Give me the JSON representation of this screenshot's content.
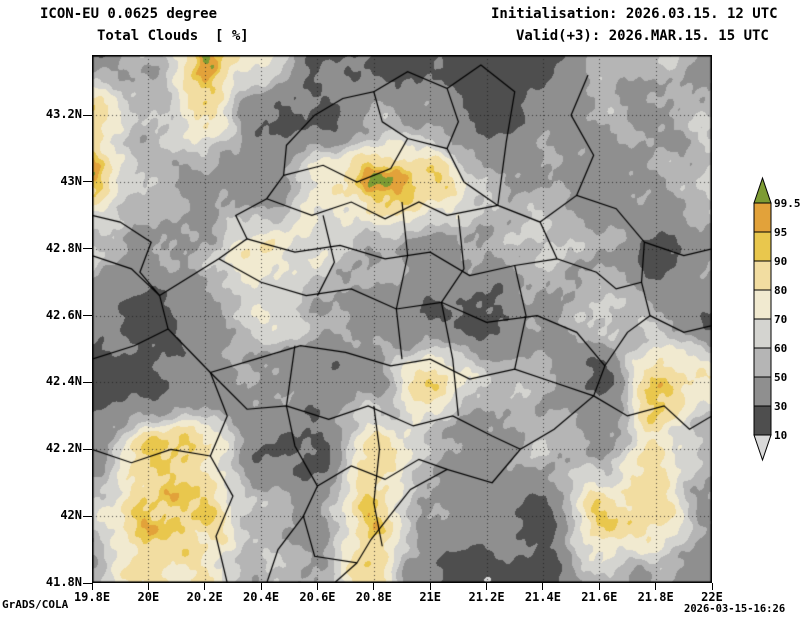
{
  "header": {
    "model_line": "ICON-EU 0.0625 degree",
    "param_line": "Total Clouds  [ %]",
    "init_line": "Initialisation: 2026.03.15. 12 UTC",
    "valid_line": "Valid(+3): 2026.MAR.15. 15 UTC"
  },
  "footer": {
    "credit": "GrADS/COLA",
    "timestamp": "2026-03-15-16:26"
  },
  "chart_data": {
    "type": "heatmap",
    "title": "Total Clouds [%]",
    "model": "ICON-EU",
    "units": "%",
    "lon_range": [
      19.8,
      22.0
    ],
    "lat_range": [
      41.8,
      43.38
    ],
    "x_ticks": [
      {
        "label": "19.8E",
        "lon": 19.8
      },
      {
        "label": "20E",
        "lon": 20.0
      },
      {
        "label": "20.2E",
        "lon": 20.2
      },
      {
        "label": "20.4E",
        "lon": 20.4
      },
      {
        "label": "20.6E",
        "lon": 20.6
      },
      {
        "label": "20.8E",
        "lon": 20.8
      },
      {
        "label": "21E",
        "lon": 21.0
      },
      {
        "label": "21.2E",
        "lon": 21.2
      },
      {
        "label": "21.4E",
        "lon": 21.4
      },
      {
        "label": "21.6E",
        "lon": 21.6
      },
      {
        "label": "21.8E",
        "lon": 21.8
      },
      {
        "label": "22E",
        "lon": 22.0
      }
    ],
    "y_ticks": [
      {
        "label": "43.2N",
        "lat": 43.2
      },
      {
        "label": "43N",
        "lat": 43.0
      },
      {
        "label": "42.8N",
        "lat": 42.8
      },
      {
        "label": "42.6N",
        "lat": 42.6
      },
      {
        "label": "42.4N",
        "lat": 42.4
      },
      {
        "label": "42.2N",
        "lat": 42.2
      },
      {
        "label": "42N",
        "lat": 42.0
      },
      {
        "label": "41.8N",
        "lat": 41.8
      }
    ],
    "levels": [
      10,
      30,
      50,
      60,
      70,
      80,
      90,
      95,
      99.5
    ],
    "level_labels": [
      "99.5",
      "95",
      "90",
      "80",
      "70",
      "60",
      "50",
      "30",
      "10"
    ],
    "colors": {
      "below": "#d9d9d9",
      "bands": [
        "#4e4e4e",
        "#8f8f8f",
        "#b5b5b5",
        "#d4d4d0",
        "#f1ead0",
        "#f2dda1",
        "#e9c74d",
        "#e2a23a"
      ],
      "above": "#7d9b33"
    },
    "grid": {
      "lon_start": 19.8,
      "lon_step": 0.2,
      "lat_start": 43.4,
      "lat_step": -0.2,
      "values": [
        [
          25,
          55,
          100,
          80,
          30,
          20,
          22,
          20,
          25,
          50,
          55,
          45
        ],
        [
          88,
          50,
          80,
          35,
          25,
          50,
          45,
          20,
          40,
          55,
          50,
          55
        ],
        [
          90,
          55,
          40,
          35,
          75,
          100,
          92,
          55,
          50,
          40,
          55,
          60
        ],
        [
          60,
          45,
          55,
          80,
          70,
          55,
          45,
          50,
          62,
          55,
          25,
          45
        ],
        [
          40,
          20,
          45,
          70,
          55,
          40,
          30,
          25,
          45,
          60,
          50,
          30
        ],
        [
          20,
          25,
          40,
          50,
          35,
          45,
          85,
          60,
          50,
          25,
          90,
          75
        ],
        [
          45,
          92,
          85,
          30,
          25,
          88,
          55,
          35,
          55,
          50,
          80,
          55
        ],
        [
          60,
          95,
          90,
          55,
          45,
          93,
          50,
          40,
          25,
          88,
          85,
          50
        ],
        [
          50,
          88,
          80,
          55,
          50,
          85,
          30,
          20,
          25,
          55,
          45,
          40
        ]
      ]
    },
    "borders": [
      [
        [
          20.59,
          43.2
        ],
        [
          20.69,
          43.25
        ],
        [
          20.8,
          43.27
        ],
        [
          20.83,
          43.18
        ],
        [
          20.92,
          43.13
        ],
        [
          21.06,
          43.1
        ],
        [
          21.12,
          43.0
        ],
        [
          21.24,
          42.93
        ],
        [
          21.39,
          42.88
        ],
        [
          21.45,
          42.77
        ],
        [
          21.59,
          42.73
        ],
        [
          21.66,
          42.68
        ],
        [
          21.75,
          42.7
        ],
        [
          21.78,
          42.6
        ],
        [
          21.7,
          42.55
        ],
        [
          21.62,
          42.45
        ],
        [
          21.58,
          42.36
        ],
        [
          21.44,
          42.26
        ],
        [
          21.32,
          42.2
        ],
        [
          21.22,
          42.1
        ],
        [
          21.06,
          42.14
        ],
        [
          20.93,
          42.08
        ],
        [
          20.79,
          41.93
        ],
        [
          20.74,
          41.86
        ],
        [
          20.59,
          41.88
        ],
        [
          20.55,
          42.0
        ],
        [
          20.6,
          42.09
        ],
        [
          20.52,
          42.21
        ],
        [
          20.49,
          42.33
        ],
        [
          20.35,
          42.32
        ],
        [
          20.22,
          42.43
        ],
        [
          20.07,
          42.56
        ],
        [
          20.04,
          42.66
        ],
        [
          20.25,
          42.77
        ],
        [
          20.35,
          42.83
        ],
        [
          20.31,
          42.9
        ],
        [
          20.42,
          42.95
        ],
        [
          20.48,
          43.02
        ],
        [
          20.49,
          43.11
        ],
        [
          20.59,
          43.2
        ]
      ],
      [
        [
          19.8,
          42.47
        ],
        [
          19.95,
          42.51
        ],
        [
          20.07,
          42.56
        ]
      ],
      [
        [
          20.04,
          42.66
        ],
        [
          19.97,
          42.73
        ],
        [
          20.01,
          42.82
        ],
        [
          19.9,
          42.88
        ],
        [
          19.8,
          42.9
        ]
      ],
      [
        [
          21.58,
          42.36
        ],
        [
          21.7,
          42.3
        ],
        [
          21.83,
          42.33
        ],
        [
          21.92,
          42.26
        ],
        [
          22.0,
          42.3
        ]
      ],
      [
        [
          20.74,
          41.86
        ],
        [
          20.66,
          41.8
        ]
      ],
      [
        [
          20.55,
          42.0
        ],
        [
          20.46,
          41.9
        ],
        [
          20.42,
          41.8
        ]
      ],
      [
        [
          20.22,
          42.43
        ],
        [
          20.28,
          42.3
        ],
        [
          20.22,
          42.18
        ],
        [
          20.3,
          42.06
        ],
        [
          20.24,
          41.94
        ],
        [
          20.28,
          41.8
        ]
      ],
      [
        [
          19.8,
          42.2
        ],
        [
          19.94,
          42.16
        ],
        [
          20.08,
          42.2
        ],
        [
          20.22,
          42.18
        ]
      ],
      [
        [
          19.8,
          42.78
        ],
        [
          19.94,
          42.74
        ],
        [
          20.04,
          42.66
        ]
      ],
      [
        [
          20.8,
          43.27
        ],
        [
          20.92,
          43.33
        ],
        [
          21.06,
          43.28
        ],
        [
          21.1,
          43.18
        ],
        [
          21.06,
          43.1
        ]
      ],
      [
        [
          21.06,
          43.28
        ],
        [
          21.18,
          43.35
        ],
        [
          21.3,
          43.27
        ],
        [
          21.27,
          43.12
        ],
        [
          21.24,
          42.93
        ]
      ],
      [
        [
          21.39,
          42.88
        ],
        [
          21.52,
          42.96
        ],
        [
          21.66,
          42.92
        ],
        [
          21.76,
          42.82
        ],
        [
          21.75,
          42.7
        ]
      ],
      [
        [
          21.52,
          42.96
        ],
        [
          21.58,
          43.08
        ],
        [
          21.5,
          43.2
        ],
        [
          21.56,
          43.32
        ]
      ],
      [
        [
          21.76,
          42.82
        ],
        [
          21.9,
          42.78
        ],
        [
          22.0,
          42.8
        ]
      ],
      [
        [
          21.78,
          42.6
        ],
        [
          21.9,
          42.55
        ],
        [
          22.0,
          42.57
        ]
      ],
      [
        [
          20.42,
          42.95
        ],
        [
          20.58,
          42.9
        ],
        [
          20.72,
          42.94
        ],
        [
          20.84,
          42.89
        ],
        [
          20.96,
          42.94
        ],
        [
          21.06,
          42.9
        ],
        [
          21.24,
          42.93
        ]
      ],
      [
        [
          20.35,
          42.83
        ],
        [
          20.52,
          42.79
        ],
        [
          20.68,
          42.81
        ],
        [
          20.84,
          42.77
        ],
        [
          21.0,
          42.79
        ],
        [
          21.14,
          42.72
        ],
        [
          21.3,
          42.75
        ],
        [
          21.45,
          42.77
        ]
      ],
      [
        [
          20.25,
          42.77
        ],
        [
          20.4,
          42.7
        ],
        [
          20.56,
          42.66
        ],
        [
          20.72,
          42.68
        ],
        [
          20.88,
          42.62
        ],
        [
          21.04,
          42.64
        ],
        [
          21.2,
          42.58
        ],
        [
          21.38,
          42.6
        ],
        [
          21.52,
          42.55
        ],
        [
          21.62,
          42.45
        ]
      ],
      [
        [
          20.22,
          42.43
        ],
        [
          20.38,
          42.47
        ],
        [
          20.54,
          42.51
        ],
        [
          20.7,
          42.49
        ],
        [
          20.86,
          42.45
        ],
        [
          21.0,
          42.47
        ],
        [
          21.14,
          42.41
        ],
        [
          21.3,
          42.44
        ],
        [
          21.44,
          42.4
        ],
        [
          21.58,
          42.36
        ]
      ],
      [
        [
          20.49,
          42.33
        ],
        [
          20.64,
          42.29
        ],
        [
          20.78,
          42.33
        ],
        [
          20.94,
          42.27
        ],
        [
          21.08,
          42.3
        ],
        [
          21.22,
          42.24
        ],
        [
          21.32,
          42.2
        ]
      ],
      [
        [
          20.6,
          42.09
        ],
        [
          20.72,
          42.15
        ],
        [
          20.84,
          42.11
        ],
        [
          20.96,
          42.17
        ],
        [
          21.06,
          42.14
        ]
      ],
      [
        [
          20.62,
          42.9
        ],
        [
          20.66,
          42.76
        ],
        [
          20.6,
          42.66
        ]
      ],
      [
        [
          20.9,
          42.94
        ],
        [
          20.92,
          42.78
        ],
        [
          20.88,
          42.62
        ],
        [
          20.9,
          42.47
        ]
      ],
      [
        [
          21.1,
          42.9
        ],
        [
          21.12,
          42.74
        ],
        [
          21.04,
          42.64
        ],
        [
          21.08,
          42.47
        ],
        [
          21.1,
          42.3
        ]
      ],
      [
        [
          21.3,
          42.75
        ],
        [
          21.34,
          42.6
        ],
        [
          21.3,
          42.44
        ]
      ],
      [
        [
          20.52,
          42.51
        ],
        [
          20.49,
          42.33
        ]
      ],
      [
        [
          20.8,
          42.33
        ],
        [
          20.82,
          42.2
        ],
        [
          20.8,
          42.04
        ],
        [
          20.83,
          41.91
        ]
      ],
      [
        [
          20.48,
          43.02
        ],
        [
          20.62,
          43.05
        ],
        [
          20.74,
          43.0
        ],
        [
          20.86,
          43.04
        ],
        [
          20.92,
          43.13
        ]
      ]
    ]
  }
}
